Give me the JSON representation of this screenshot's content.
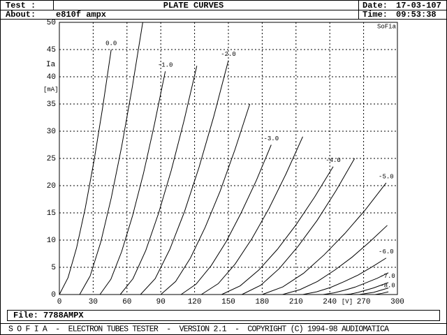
{
  "header": {
    "test_label": "Test :",
    "title": "PLATE CURVES",
    "date_label": "Date:",
    "date": "17-03-107",
    "about_label": "About:",
    "about": "e810f ampx",
    "time_label": "Time:",
    "time": "09:53:38"
  },
  "file": {
    "label": "File:",
    "name": "7788AMPX"
  },
  "status_bar": "S O F I A  -  ELECTRON TUBES TESTER  -  VERSION 2.1  -  COPYRIGHT (C) 1994-98 AUDIOMATICA",
  "chart_data": {
    "type": "line",
    "brand": "SoFia",
    "ylabel": "Ia",
    "yunit": "[mA]",
    "xlabel": "[V]",
    "xlim": [
      0,
      300
    ],
    "ylim": [
      0,
      50
    ],
    "xticks": [
      0,
      30,
      60,
      90,
      120,
      150,
      180,
      210,
      240,
      270,
      300
    ],
    "yticks": [
      0,
      5,
      10,
      15,
      20,
      25,
      30,
      35,
      40,
      45,
      50
    ],
    "grid": true,
    "color": "#000000",
    "series": [
      {
        "name": "0.0",
        "x": [
          0,
          7.7,
          15.3,
          23,
          30.7,
          38.3,
          46
        ],
        "values": [
          0,
          3.1,
          8.6,
          15.9,
          24.5,
          34.2,
          45
        ]
      },
      {
        "x": [
          18,
          27.3,
          36.7,
          46,
          55.3,
          64.7,
          74
        ],
        "values": [
          0,
          3.4,
          9.6,
          17.7,
          27.2,
          38.1,
          50
        ]
      },
      {
        "name": "-1.0",
        "x": [
          36,
          45.7,
          55.3,
          65,
          74.7,
          84.3,
          94
        ],
        "values": [
          0,
          2.8,
          7.9,
          14.5,
          22.3,
          31.2,
          41
        ]
      },
      {
        "x": [
          54,
          65.3,
          76.7,
          88,
          99.3,
          110.7,
          122
        ],
        "values": [
          0,
          2.9,
          8.1,
          14.9,
          22.8,
          32,
          42
        ]
      },
      {
        "name": "-2.0",
        "x": [
          72,
          85,
          98,
          111,
          124,
          137,
          150
        ],
        "values": [
          0,
          2.9,
          8.3,
          15.2,
          23.4,
          32.7,
          43
        ]
      },
      {
        "x": [
          90,
          103.2,
          116.3,
          129.5,
          142.7,
          155.8,
          169
        ],
        "values": [
          0,
          2.4,
          6.7,
          12.4,
          19,
          26.6,
          35
        ]
      },
      {
        "name": "-3.0",
        "x": [
          108,
          121.3,
          134.7,
          148,
          161.3,
          174.7,
          188
        ],
        "values": [
          0,
          1.9,
          5.3,
          9.7,
          15,
          20.9,
          27.5
        ]
      },
      {
        "x": [
          126,
          141,
          156,
          171,
          186,
          201,
          216
        ],
        "values": [
          0,
          2,
          5.6,
          10.3,
          15.8,
          22.1,
          29
        ]
      },
      {
        "name": "-4.0",
        "x": [
          144,
          160.5,
          177,
          193.5,
          210,
          226.5,
          243
        ],
        "values": [
          0,
          1.6,
          4.5,
          8.3,
          12.8,
          17.9,
          23.5
        ]
      },
      {
        "x": [
          162,
          178.7,
          195.3,
          212,
          228.7,
          245.3,
          262
        ],
        "values": [
          0,
          1.7,
          4.8,
          8.9,
          13.6,
          19,
          25
        ]
      },
      {
        "name": "-5.0",
        "x": [
          180,
          198.3,
          216.7,
          235,
          253.3,
          271.7,
          290
        ],
        "values": [
          0,
          1.4,
          3.9,
          7.3,
          11.2,
          15.6,
          20.5
        ]
      },
      {
        "x": [
          198,
          213.5,
          229,
          244.5,
          260,
          275.5,
          291
        ],
        "values": [
          0,
          0.9,
          2.4,
          4.5,
          6.9,
          9.7,
          12.7
        ]
      },
      {
        "name": "-6.0",
        "x": [
          216,
          228.3,
          240.7,
          253,
          265.3,
          277.7,
          290
        ],
        "values": [
          0,
          0.5,
          1.3,
          2.4,
          3.6,
          5.1,
          6.7
        ]
      },
      {
        "x": [
          234,
          243.7,
          253.3,
          263,
          272.7,
          282.3,
          292
        ],
        "values": [
          0,
          0.3,
          0.8,
          1.4,
          2.2,
          3,
          4
        ]
      },
      {
        "name": "-7.0",
        "x": [
          252,
          258.7,
          265.3,
          272,
          278.7,
          285.3,
          292
        ],
        "values": [
          0,
          0.1,
          0.4,
          0.8,
          1.2,
          1.7,
          2.2
        ]
      },
      {
        "x": [
          266,
          279,
          292
        ],
        "values": [
          0,
          0.4,
          1.2
        ]
      },
      {
        "name": "-8.0",
        "x": [
          280,
          286,
          292
        ],
        "values": [
          0,
          0.2,
          0.5
        ]
      }
    ]
  }
}
